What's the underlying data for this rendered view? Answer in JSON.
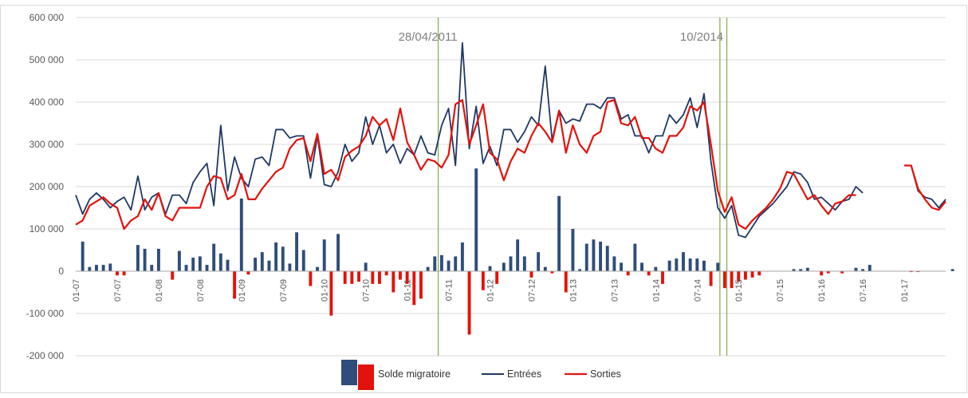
{
  "chart_data": {
    "type": "bar",
    "title": "",
    "xlabel": "",
    "ylabel": "",
    "ylim": [
      -200000,
      600000
    ],
    "grid": true,
    "y_ticks": [
      600000,
      500000,
      400000,
      300000,
      200000,
      100000,
      0,
      -100000,
      -200000
    ],
    "y_tick_labels": [
      "600 000",
      "500 000",
      "400 000",
      "300 000",
      "200 000",
      "100 000",
      "0",
      "-100 000",
      "-200 000"
    ],
    "x_tick_labels": [
      "01-07",
      "07-07",
      "01-08",
      "07-08",
      "01-09",
      "07-09",
      "01-10",
      "07-10",
      "01-11",
      "07-11",
      "01-12",
      "07-12",
      "01-13",
      "07-13",
      "01-14",
      "07-14",
      "01-15",
      "07-15",
      "01-16",
      "07-16",
      "01-17"
    ],
    "x_tick_months": [
      0,
      6,
      12,
      18,
      24,
      30,
      36,
      42,
      48,
      54,
      60,
      66,
      72,
      78,
      84,
      90,
      96,
      102,
      108,
      114,
      120
    ],
    "x_unit": "months since 01-07",
    "colors": {
      "entrees": "#1f3864",
      "sorties": "#e3120b",
      "solde_pos": "#2e4d7b",
      "solde_neg": "#e3120b",
      "vlines": "#8aad5a",
      "grid": "#d9d9d9"
    },
    "legend": {
      "position": "bottom",
      "entries": [
        "Solde migratoire",
        "Entrées",
        "Sorties"
      ]
    },
    "annotations": [
      {
        "label": "28/04/2011",
        "x_months": [
          52.5
        ]
      },
      {
        "label": "10/2014",
        "x_months": [
          93.3,
          94.3
        ]
      }
    ],
    "series": [
      {
        "name": "Entrées",
        "kind": "line",
        "values": [
          180000,
          135000,
          170000,
          185000,
          170000,
          150000,
          165000,
          175000,
          145000,
          225000,
          145000,
          175000,
          185000,
          135000,
          180000,
          180000,
          160000,
          210000,
          235000,
          255000,
          155000,
          345000,
          190000,
          270000,
          220000,
          200000,
          265000,
          270000,
          250000,
          335000,
          335000,
          315000,
          320000,
          320000,
          220000,
          320000,
          205000,
          200000,
          235000,
          300000,
          260000,
          280000,
          365000,
          300000,
          345000,
          280000,
          300000,
          255000,
          290000,
          275000,
          320000,
          280000,
          275000,
          345000,
          385000,
          250000,
          540000,
          290000,
          390000,
          255000,
          295000,
          250000,
          335000,
          335000,
          305000,
          330000,
          365000,
          345000,
          485000,
          310000,
          380000,
          350000,
          360000,
          355000,
          395000,
          395000,
          385000,
          410000,
          410000,
          360000,
          370000,
          320000,
          320000,
          280000,
          320000,
          320000,
          370000,
          350000,
          370000,
          410000,
          340000,
          420000,
          260000,
          150000,
          125000,
          155000,
          85000,
          80000,
          105000,
          130000,
          145000,
          160000,
          180000,
          200000,
          235000,
          230000,
          210000,
          170000,
          175000,
          160000,
          145000,
          165000,
          170000,
          200000,
          185000,
          null,
          null,
          null,
          null,
          null,
          250000,
          250000,
          190000,
          175000,
          170000,
          150000,
          170000
        ],
        "values_note": "monthly, index 0 = 01-07"
      },
      {
        "name": "Sorties",
        "kind": "line",
        "values": [
          110000,
          120000,
          155000,
          165000,
          175000,
          160000,
          150000,
          100000,
          120000,
          130000,
          170000,
          145000,
          185000,
          130000,
          120000,
          150000,
          150000,
          150000,
          150000,
          200000,
          225000,
          220000,
          170000,
          180000,
          230000,
          170000,
          170000,
          195000,
          215000,
          235000,
          245000,
          290000,
          310000,
          315000,
          260000,
          325000,
          230000,
          240000,
          215000,
          270000,
          285000,
          295000,
          320000,
          365000,
          345000,
          360000,
          310000,
          385000,
          305000,
          275000,
          240000,
          265000,
          260000,
          245000,
          275000,
          395000,
          405000,
          300000,
          345000,
          395000,
          280000,
          265000,
          215000,
          260000,
          290000,
          280000,
          320000,
          350000,
          330000,
          305000,
          380000,
          280000,
          345000,
          300000,
          280000,
          320000,
          330000,
          400000,
          405000,
          350000,
          345000,
          365000,
          315000,
          315000,
          290000,
          280000,
          320000,
          320000,
          340000,
          390000,
          380000,
          400000,
          300000,
          190000,
          140000,
          175000,
          110000,
          100000,
          120000,
          135000,
          150000,
          170000,
          195000,
          235000,
          230000,
          200000,
          170000,
          180000,
          155000,
          135000,
          160000,
          165000,
          180000,
          180000,
          null,
          null,
          null,
          null,
          null,
          null,
          250000,
          250000,
          195000,
          170000,
          150000,
          145000,
          165000
        ]
      },
      {
        "name": "Solde migratoire",
        "kind": "bar",
        "values": [
          0,
          70000,
          10000,
          15000,
          15000,
          18000,
          -10000,
          -10000,
          0,
          62000,
          53000,
          15000,
          53000,
          0,
          -20000,
          48000,
          15000,
          32000,
          35000,
          15000,
          65000,
          42000,
          27000,
          -65000,
          172000,
          -8000,
          32000,
          45000,
          25000,
          68000,
          58000,
          18000,
          92000,
          50000,
          -35000,
          10000,
          75000,
          -105000,
          88000,
          -30000,
          -30000,
          -25000,
          20000,
          -30000,
          -30000,
          -10000,
          -50000,
          -20000,
          -30000,
          -80000,
          -65000,
          10000,
          35000,
          38000,
          25000,
          35000,
          68000,
          -150000,
          243000,
          -45000,
          12000,
          -30000,
          20000,
          35000,
          75000,
          35000,
          -15000,
          45000,
          10000,
          -5000,
          178000,
          -50000,
          100000,
          5000,
          65000,
          75000,
          70000,
          60000,
          35000,
          20000,
          -10000,
          65000,
          20000,
          -10000,
          10000,
          -30000,
          25000,
          30000,
          45000,
          30000,
          30000,
          25000,
          -35000,
          20000,
          -40000,
          -40000,
          -25000,
          -20000,
          -15000,
          -10000,
          0,
          0,
          0,
          0,
          5000,
          5000,
          8000,
          0,
          -10000,
          -5000,
          0,
          -5000,
          0,
          8000,
          5000,
          15000,
          0,
          0,
          0,
          0,
          0,
          -2000,
          -2000,
          0,
          0,
          0,
          0,
          5000
        ]
      }
    ]
  }
}
